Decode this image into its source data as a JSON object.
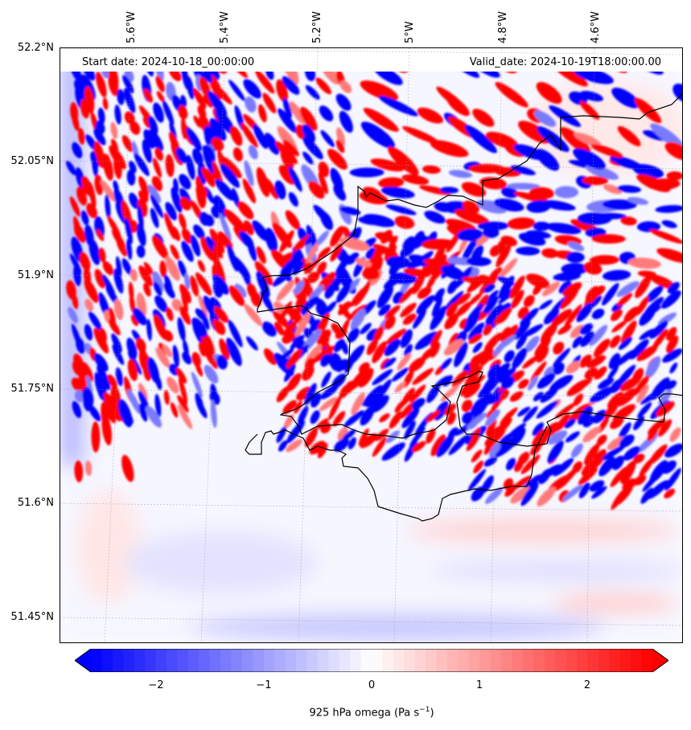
{
  "map": {
    "start_date": "Start date: 2024-10-18_00:00:00",
    "valid_date": "Valid_date: 2024-10-19T18:00:00.00",
    "lat_labels": [
      "52.2°N",
      "52.05°N",
      "51.9°N",
      "51.75°N",
      "51.6°N",
      "51.45°N"
    ],
    "lon_labels": [
      "5.6°W",
      "5.4°W",
      "5.2°W",
      "5°W",
      "4.8°W",
      "4.6°W"
    ],
    "field": "925 hPa omega",
    "colormap": {
      "negative": "#0000ff",
      "zero": "#ffffff",
      "positive": "#ff0000"
    },
    "coastline_color": "#000000"
  },
  "colorbar": {
    "ticks": [
      "−2",
      "−1",
      "0",
      "1",
      "2"
    ],
    "range": [
      -2.6,
      2.6
    ],
    "label": "925 hPa omega (Pa s",
    "label_exp": "−1",
    "label_end": ")"
  }
}
